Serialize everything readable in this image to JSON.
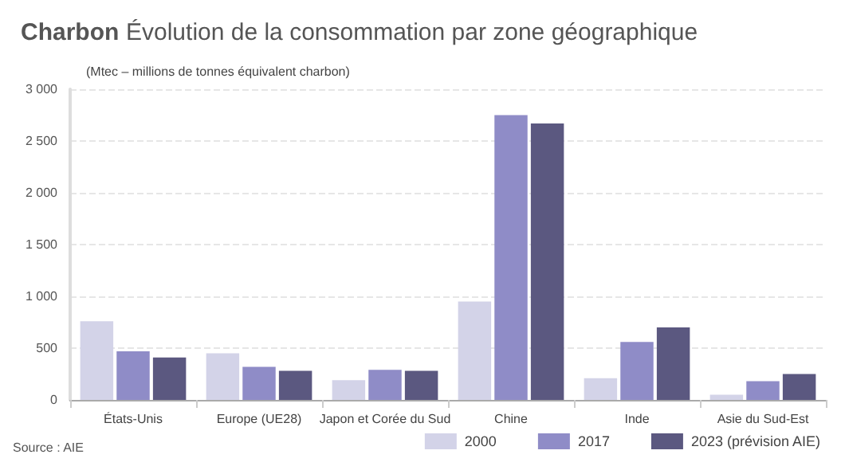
{
  "chart_data": {
    "type": "bar",
    "title": "Charbon",
    "subtitle": "Évolution de la consommation par zone géographique",
    "annotations": [
      "(Mtec – millions de tonnes équivalent charbon)",
      "Source : AIE"
    ],
    "categories": [
      "États-Unis",
      "Europe (UE28)",
      "Japon et Corée du Sud",
      "Chine",
      "Inde",
      "Asie du Sud-Est"
    ],
    "series": [
      {
        "name": "2000",
        "color": "#d3d3e8",
        "values": [
          760,
          450,
          190,
          950,
          210,
          50
        ]
      },
      {
        "name": "2017",
        "color": "#8f8cc7",
        "values": [
          470,
          320,
          290,
          2750,
          560,
          180
        ]
      },
      {
        "name": "2023 (prévision AIE)",
        "color": "#5b5880",
        "values": [
          410,
          280,
          280,
          2670,
          700,
          250
        ]
      }
    ],
    "ylim": [
      0,
      3000
    ],
    "yticks": [
      0,
      500,
      {
        "value": 1000,
        "label": "1 000"
      },
      {
        "value": 1500,
        "label": "1 500"
      },
      {
        "value": 2000,
        "label": "2 000"
      },
      {
        "value": 2500,
        "label": "2 500"
      },
      {
        "value": 3000,
        "label": "3 000"
      }
    ],
    "grid": "y",
    "legend": "bottom right"
  }
}
